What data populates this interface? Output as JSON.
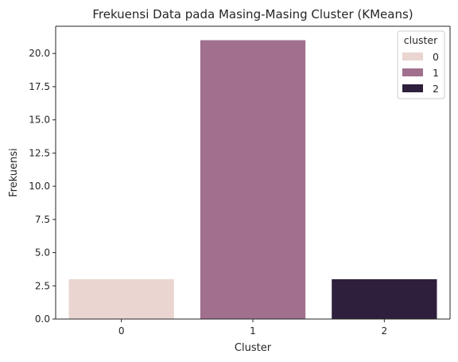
{
  "chart_data": {
    "type": "bar",
    "title": "Frekuensi Data pada Masing-Masing Cluster (KMeans)",
    "xlabel": "Cluster",
    "ylabel": "Frekuensi",
    "categories": [
      "0",
      "1",
      "2"
    ],
    "values": [
      3,
      21,
      3
    ],
    "colors": [
      "#ead5d0",
      "#a0708e",
      "#2e1f3c"
    ],
    "ylim": [
      0,
      22.05
    ],
    "yticks": [
      "0.0",
      "2.5",
      "5.0",
      "7.5",
      "10.0",
      "12.5",
      "15.0",
      "17.5",
      "20.0"
    ],
    "legend": {
      "title": "cluster",
      "placement": "top-right",
      "entries": [
        "0",
        "1",
        "2"
      ]
    },
    "grid": false
  }
}
